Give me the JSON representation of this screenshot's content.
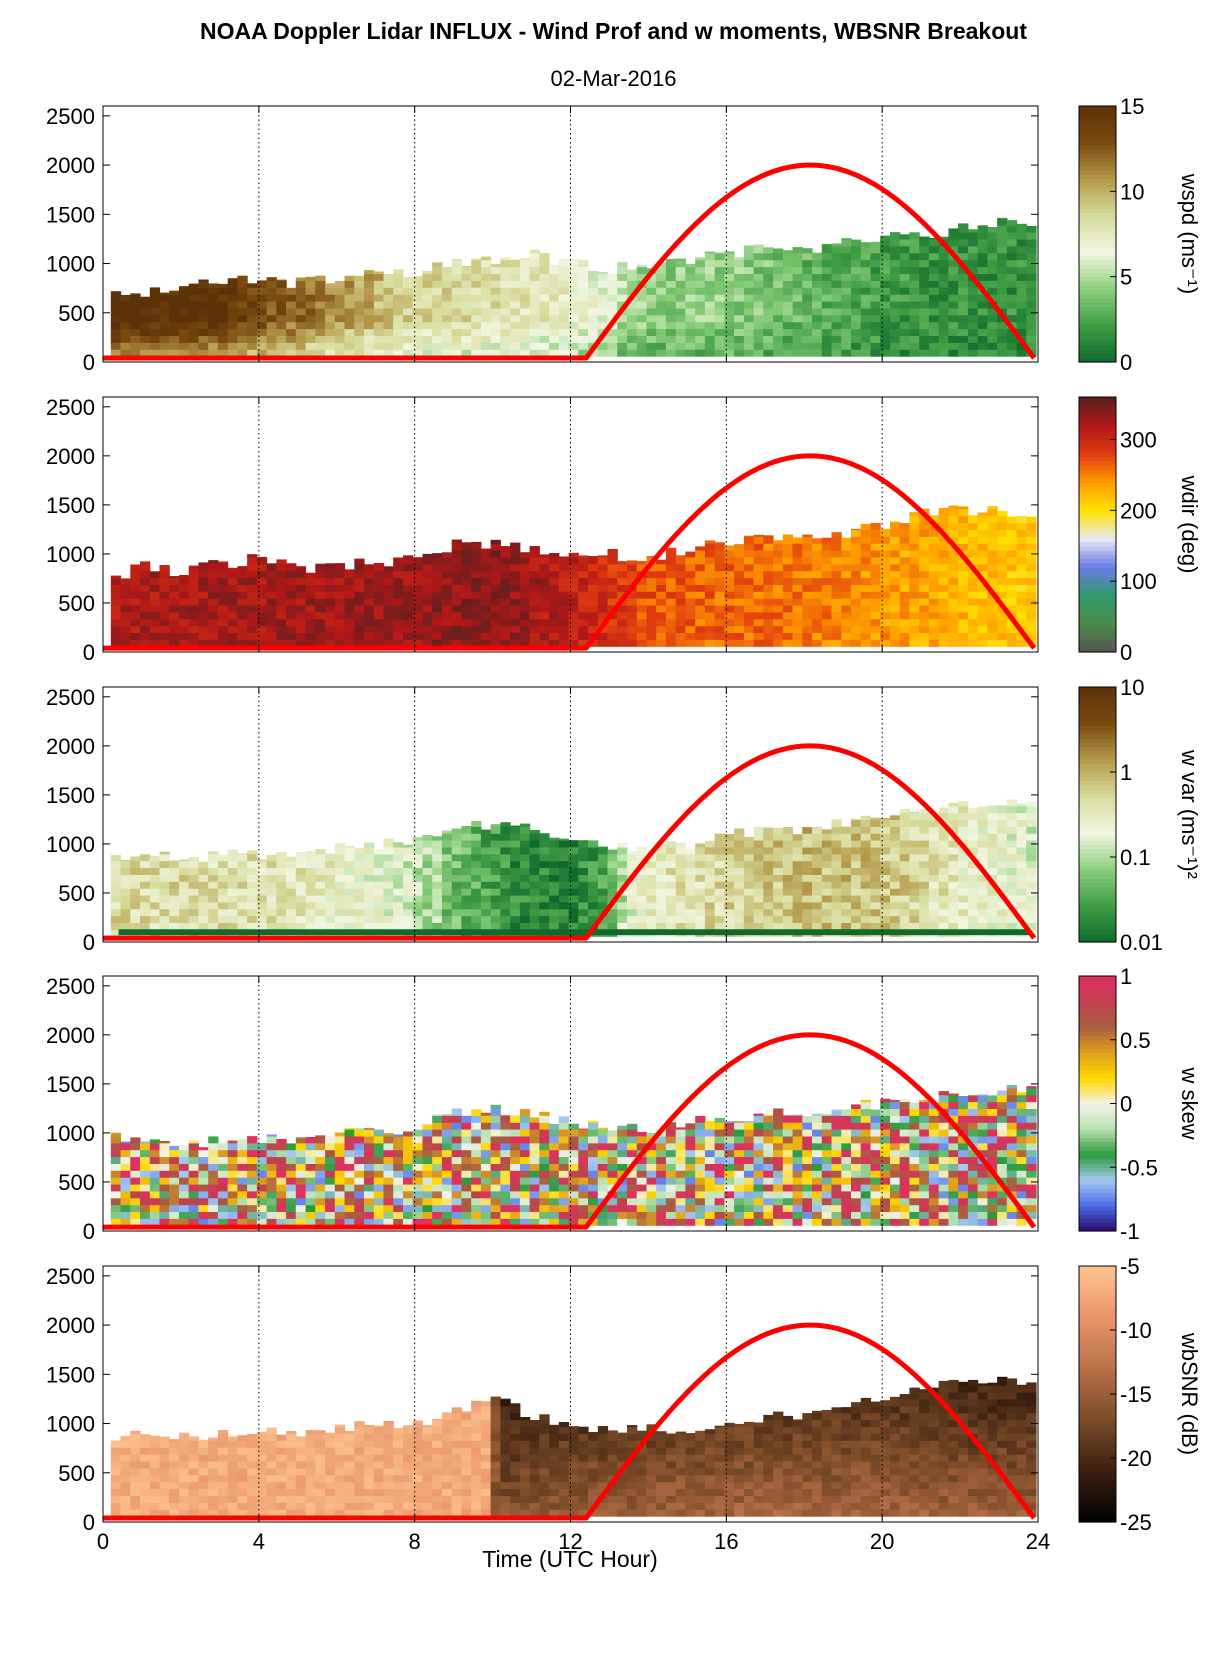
{
  "figure": {
    "title": "NOAA Doppler Lidar INFLUX - Wind Prof and w moments, WBSNR Breakout",
    "subtitle": "02-Mar-2016",
    "xlabel": "Time (UTC Hour)"
  },
  "chart_data": [
    {
      "type": "heatmap",
      "id": "wspd",
      "colorbar_label": "wspd (ms⁻¹)",
      "colorbar_ticks": [
        "15",
        "10",
        "5",
        "0"
      ],
      "colorbar_range": [
        0,
        15
      ],
      "colors": [
        "#0f6b2d",
        "#3f9c44",
        "#8ccf7c",
        "#f2f6e2",
        "#d7dc9c",
        "#b59a4a",
        "#7a4a10",
        "#5e3208"
      ],
      "xlim": [
        0,
        24
      ],
      "ylim": [
        0,
        2600
      ],
      "x_ticks": [
        "0",
        "4",
        "8",
        "12",
        "16",
        "20",
        "24"
      ],
      "y_ticks": [
        "0",
        "500",
        "1000",
        "1500",
        "2000",
        "2500"
      ],
      "top_profile_m": [
        [
          0.2,
          700
        ],
        [
          1,
          700
        ],
        [
          2,
          760
        ],
        [
          3,
          820
        ],
        [
          4,
          850
        ],
        [
          5,
          800
        ],
        [
          6,
          850
        ],
        [
          7,
          900
        ],
        [
          8,
          900
        ],
        [
          9,
          1000
        ],
        [
          10,
          1050
        ],
        [
          11,
          1100
        ],
        [
          12,
          1000
        ],
        [
          13,
          950
        ],
        [
          14,
          1000
        ],
        [
          15,
          1050
        ],
        [
          16,
          1100
        ],
        [
          17,
          1150
        ],
        [
          18,
          1150
        ],
        [
          19,
          1200
        ],
        [
          20,
          1250
        ],
        [
          21,
          1300
        ],
        [
          22,
          1350
        ],
        [
          23,
          1420
        ],
        [
          23.8,
          1400
        ]
      ],
      "value_anchors": [
        [
          0,
          14
        ],
        [
          3,
          13.5
        ],
        [
          4,
          12
        ],
        [
          6,
          10
        ],
        [
          8,
          8
        ],
        [
          10,
          7.5
        ],
        [
          12,
          6.5
        ],
        [
          14,
          4
        ],
        [
          16,
          4
        ],
        [
          18,
          3
        ],
        [
          20,
          2
        ],
        [
          22,
          1.5
        ],
        [
          24,
          1.5
        ]
      ]
    },
    {
      "type": "heatmap",
      "id": "wdir",
      "colorbar_label": "wdir (deg)",
      "colorbar_ticks": [
        "300",
        "200",
        "100",
        "0"
      ],
      "colorbar_range": [
        0,
        360
      ],
      "colors": [
        "#555555",
        "#4a8a4a",
        "#2f9a6a",
        "#6a7ae6",
        "#e8e8f4",
        "#ffe000",
        "#ff9c00",
        "#e03a10",
        "#b01818",
        "#5a2020"
      ],
      "xlim": [
        0,
        24
      ],
      "ylim": [
        0,
        2600
      ],
      "x_ticks": [
        "0",
        "4",
        "8",
        "12",
        "16",
        "20",
        "24"
      ],
      "y_ticks": [
        "0",
        "500",
        "1000",
        "1500",
        "2000",
        "2500"
      ],
      "top_profile_m": [
        [
          0.2,
          700
        ],
        [
          1,
          900
        ],
        [
          2,
          800
        ],
        [
          3,
          900
        ],
        [
          4,
          950
        ],
        [
          5,
          850
        ],
        [
          6,
          900
        ],
        [
          7,
          900
        ],
        [
          8,
          950
        ],
        [
          9,
          1100
        ],
        [
          10,
          1100
        ],
        [
          11,
          1050
        ],
        [
          12,
          1000
        ],
        [
          13,
          1000
        ],
        [
          14,
          950
        ],
        [
          15,
          1050
        ],
        [
          16,
          1100
        ],
        [
          17,
          1150
        ],
        [
          18,
          1150
        ],
        [
          19,
          1200
        ],
        [
          20,
          1300
        ],
        [
          21,
          1400
        ],
        [
          22,
          1450
        ],
        [
          23,
          1450
        ],
        [
          23.8,
          1380
        ]
      ],
      "value_anchors": [
        [
          0,
          320
        ],
        [
          4,
          325
        ],
        [
          8,
          330
        ],
        [
          10,
          340
        ],
        [
          12,
          310
        ],
        [
          14,
          270
        ],
        [
          16,
          260
        ],
        [
          18,
          255
        ],
        [
          20,
          240
        ],
        [
          22,
          225
        ],
        [
          24,
          210
        ]
      ]
    },
    {
      "type": "heatmap",
      "id": "wvar",
      "colorbar_label": "w var (ms⁻¹)²",
      "colorbar_ticks": [
        "10",
        "1",
        "0.1",
        "0.01"
      ],
      "colorbar_range": [
        0.01,
        10
      ],
      "colorbar_scale": "log",
      "colors": [
        "#0f6b2d",
        "#3f9c44",
        "#8ccf7c",
        "#f2f6e2",
        "#d7dc9c",
        "#b59a4a",
        "#7a4a10",
        "#5e3208"
      ],
      "xlim": [
        0,
        24
      ],
      "ylim": [
        0,
        2600
      ],
      "x_ticks": [
        "0",
        "4",
        "8",
        "12",
        "16",
        "20",
        "24"
      ],
      "y_ticks": [
        "0",
        "500",
        "1000",
        "1500",
        "2000",
        "2500"
      ],
      "top_profile_m": [
        [
          0.4,
          850
        ],
        [
          1,
          900
        ],
        [
          2,
          850
        ],
        [
          3,
          880
        ],
        [
          4,
          900
        ],
        [
          5,
          900
        ],
        [
          6,
          950
        ],
        [
          7,
          1000
        ],
        [
          8,
          1000
        ],
        [
          9,
          1150
        ],
        [
          10,
          1200
        ],
        [
          11,
          1150
        ],
        [
          12,
          1050
        ],
        [
          13,
          1000
        ],
        [
          14,
          950
        ],
        [
          15,
          1000
        ],
        [
          16,
          1100
        ],
        [
          17,
          1150
        ],
        [
          18,
          1150
        ],
        [
          19,
          1200
        ],
        [
          20,
          1300
        ],
        [
          21,
          1350
        ],
        [
          22,
          1400
        ],
        [
          23,
          1450
        ],
        [
          23.8,
          1450
        ]
      ],
      "value_anchors": [
        [
          0,
          0.5
        ],
        [
          4,
          0.4
        ],
        [
          7,
          0.2
        ],
        [
          9,
          0.05
        ],
        [
          10.5,
          0.02
        ],
        [
          12,
          0.015
        ],
        [
          13,
          0.03
        ],
        [
          14,
          0.3
        ],
        [
          16,
          0.5
        ],
        [
          18,
          0.8
        ],
        [
          20,
          0.7
        ],
        [
          22,
          0.3
        ],
        [
          24,
          0.15
        ]
      ]
    },
    {
      "type": "heatmap",
      "id": "wskew",
      "colorbar_label": "w skew",
      "colorbar_ticks": [
        "1",
        "0.5",
        "0",
        "-0.5",
        "-1"
      ],
      "colorbar_range": [
        -1,
        1
      ],
      "colors": [
        "#2a0a6a",
        "#4a6ae6",
        "#a6c8f0",
        "#2a9a3a",
        "#b8e0b0",
        "#f2f2ea",
        "#ffd800",
        "#e0a020",
        "#a86040",
        "#c04050",
        "#e03060"
      ],
      "xlim": [
        0,
        24
      ],
      "ylim": [
        0,
        2600
      ],
      "x_ticks": [
        "0",
        "4",
        "8",
        "12",
        "16",
        "20",
        "24"
      ],
      "y_ticks": [
        "0",
        "500",
        "1000",
        "1500",
        "2000",
        "2500"
      ],
      "top_profile_m": [
        [
          0.4,
          950
        ],
        [
          1,
          900
        ],
        [
          2,
          900
        ],
        [
          3,
          920
        ],
        [
          4,
          950
        ],
        [
          5,
          950
        ],
        [
          6,
          1000
        ],
        [
          7,
          1000
        ],
        [
          8,
          1050
        ],
        [
          9,
          1200
        ],
        [
          10,
          1250
        ],
        [
          11,
          1200
        ],
        [
          12,
          1100
        ],
        [
          13,
          1050
        ],
        [
          14,
          1050
        ],
        [
          15,
          1100
        ],
        [
          16,
          1150
        ],
        [
          17,
          1200
        ],
        [
          18,
          1200
        ],
        [
          19,
          1250
        ],
        [
          20,
          1300
        ],
        [
          21,
          1350
        ],
        [
          22,
          1400
        ],
        [
          23,
          1450
        ],
        [
          23.8,
          1450
        ]
      ],
      "value_anchors": [
        [
          0,
          0.1
        ],
        [
          24,
          0.1
        ]
      ]
    },
    {
      "type": "heatmap",
      "id": "wbsnr",
      "colorbar_label": "wbSNR (dB)",
      "colorbar_ticks": [
        "-5",
        "-10",
        "-15",
        "-20",
        "-25"
      ],
      "colorbar_range": [
        -25,
        -5
      ],
      "colors": [
        "#000000",
        "#3a2010",
        "#7a4a28",
        "#b87048",
        "#e8946a",
        "#ffc490"
      ],
      "xlim": [
        0,
        24
      ],
      "ylim": [
        0,
        2600
      ],
      "x_ticks": [
        "0",
        "4",
        "8",
        "12",
        "16",
        "20",
        "24"
      ],
      "y_ticks": [
        "0",
        "500",
        "1000",
        "1500",
        "2000",
        "2500"
      ],
      "top_profile_m": [
        [
          0.4,
          850
        ],
        [
          1,
          900
        ],
        [
          2,
          850
        ],
        [
          3,
          900
        ],
        [
          4,
          900
        ],
        [
          5,
          900
        ],
        [
          6,
          950
        ],
        [
          7,
          1000
        ],
        [
          8,
          1000
        ],
        [
          9,
          1100
        ],
        [
          10,
          1250
        ],
        [
          11,
          1100
        ],
        [
          12,
          1000
        ],
        [
          13,
          950
        ],
        [
          14,
          950
        ],
        [
          15,
          900
        ],
        [
          16,
          1000
        ],
        [
          17,
          1050
        ],
        [
          18,
          1100
        ],
        [
          19,
          1150
        ],
        [
          20,
          1250
        ],
        [
          21,
          1350
        ],
        [
          22,
          1400
        ],
        [
          23,
          1450
        ],
        [
          23.8,
          1400
        ]
      ],
      "value_anchors": [
        [
          0,
          -7
        ],
        [
          9.9,
          -7
        ],
        [
          10,
          -16
        ],
        [
          12,
          -15
        ],
        [
          16,
          -14
        ],
        [
          20,
          -14
        ],
        [
          24,
          -15
        ]
      ]
    }
  ],
  "overlay": {
    "color": "#ff0000",
    "name": "solar elevation curve",
    "baseline_m": 40,
    "rise_hour": 12.4,
    "set_hour": 23.9,
    "peak_hour": 18.0,
    "peak_m": 2000
  }
}
